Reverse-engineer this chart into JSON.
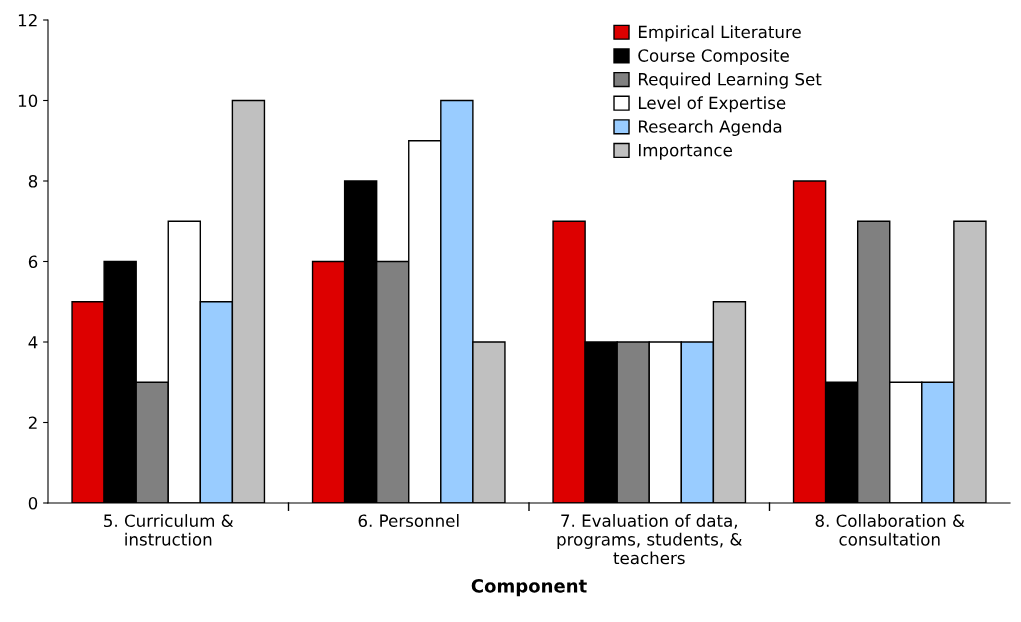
{
  "chart_data": {
    "type": "bar",
    "xlabel": "Component",
    "categories": [
      "5. Curriculum &\ninstruction",
      "6. Personnel",
      "7. Evaluation of data,\nprograms, students, &\nteachers",
      "8. Collaboration &\nconsultation"
    ],
    "series": [
      {
        "name": "Empirical Literature",
        "color": "#dd0000",
        "values": [
          5,
          6,
          7,
          8
        ]
      },
      {
        "name": "Course Composite",
        "color": "#000000",
        "values": [
          6,
          8,
          4,
          3
        ]
      },
      {
        "name": "Required Learning Set",
        "color": "#808080",
        "values": [
          3,
          6,
          4,
          7
        ]
      },
      {
        "name": "Level of Expertise",
        "color": "#ffffff",
        "values": [
          7,
          9,
          4,
          3
        ]
      },
      {
        "name": "Research Agenda",
        "color": "#99ccff",
        "values": [
          5,
          10,
          4,
          3
        ]
      },
      {
        "name": "Importance",
        "color": "#c0c0c0",
        "values": [
          10,
          4,
          5,
          7
        ]
      }
    ],
    "ylim": [
      0,
      12
    ],
    "yticks": [
      0,
      2,
      4,
      6,
      8,
      10,
      12
    ],
    "grid": false,
    "legend": "top right"
  }
}
